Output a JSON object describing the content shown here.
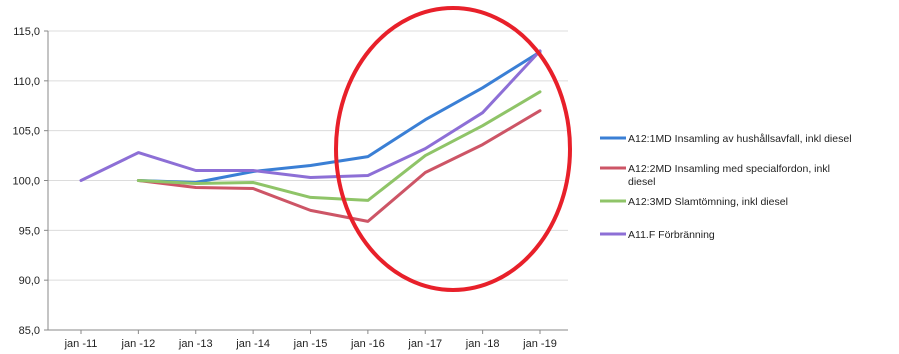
{
  "chart_data": {
    "type": "line",
    "categories": [
      "jan -11",
      "jan -12",
      "jan -13",
      "jan -14",
      "jan -15",
      "jan -16",
      "jan -17",
      "jan -18",
      "jan -19"
    ],
    "ylim": [
      85,
      115
    ],
    "yticks": [
      85,
      90,
      95,
      100,
      105,
      110,
      115
    ],
    "ytick_labels": [
      "85,0",
      "90,0",
      "95,0",
      "100,0",
      "105,0",
      "110,0",
      "115,0"
    ],
    "grid": true,
    "legend_position": "right",
    "series": [
      {
        "name": "A12:1MD Insamling av hushållsavfall, inkl diesel",
        "color": "#3a7fd5",
        "values": [
          null,
          100.0,
          99.8,
          100.9,
          101.5,
          102.4,
          106.1,
          109.3,
          112.9
        ]
      },
      {
        "name": "A12:2MD Insamling med specialfordon, inkl diesel",
        "color": "#cd5566",
        "values": [
          null,
          100.0,
          99.3,
          99.2,
          97.0,
          95.9,
          100.8,
          103.6,
          107.0
        ]
      },
      {
        "name": "A12:3MD Slamtömning, inkl diesel",
        "color": "#8fc468",
        "values": [
          null,
          100.0,
          99.7,
          99.8,
          98.3,
          98.0,
          102.5,
          105.5,
          108.9
        ]
      },
      {
        "name": "A11.F Förbränning",
        "color": "#8d6fd6",
        "values": [
          100.0,
          102.8,
          101.0,
          101.0,
          100.3,
          100.5,
          103.2,
          106.8,
          113.0
        ]
      }
    ],
    "legend_lines": [
      [
        "A12:1MD Insamling av hushållsavfall, inkl diesel"
      ],
      [
        "A12:2MD Insamling med specialfordon, inkl",
        "diesel"
      ],
      [
        "A12:3MD Slamtömning, inkl diesel"
      ],
      [
        "A11.F Förbränning"
      ]
    ],
    "annotation": {
      "shape": "ellipse",
      "color": "#e8202a"
    }
  }
}
